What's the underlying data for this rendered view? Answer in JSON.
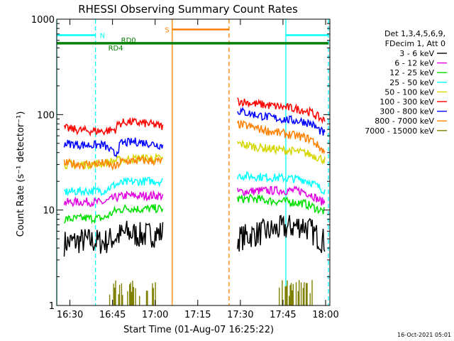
{
  "chart_data": {
    "type": "line",
    "title": "RHESSI Observing Summary Count Rates",
    "xlabel": "Start Time (01-Aug-07 16:25:22)",
    "ylabel": "Count Rate (s⁻¹ detector⁻¹)",
    "yscale": "log",
    "ylim": [
      1,
      1000
    ],
    "xlim": [
      "16:25:22",
      "18:01:30"
    ],
    "x_ticks": [
      "16:30",
      "16:45",
      "17:00",
      "17:15",
      "17:30",
      "17:45",
      "18:00"
    ],
    "y_ticks": [
      "1",
      "10",
      "100",
      "1000"
    ],
    "legend_header": [
      "Det 1,3,4,5,6,9,",
      "FDecim 1, Att 0"
    ],
    "legend_position": "right",
    "timestamp": "16-Oct-2021 05:01",
    "series": [
      {
        "name": "3 - 6 keV",
        "color": "#000000",
        "segments": [
          [
            [
              "16:28",
              4.5
            ],
            [
              "16:35",
              4.8
            ],
            [
              "16:42",
              4.6
            ],
            [
              "16:46",
              5.2
            ],
            [
              "16:50",
              5.8
            ],
            [
              "16:55",
              5.4
            ],
            [
              "17:00",
              5.6
            ],
            [
              "17:03",
              5.8
            ]
          ],
          [
            [
              "17:29",
              5.0
            ],
            [
              "17:35",
              5.6
            ],
            [
              "17:40",
              6.0
            ],
            [
              "17:47",
              6.6
            ],
            [
              "17:52",
              7.0
            ],
            [
              "17:55",
              6.0
            ],
            [
              "17:58",
              5.0
            ],
            [
              "18:00",
              4.6
            ]
          ]
        ]
      },
      {
        "name": "6 - 12 keV",
        "color": "#e000e0",
        "segments": [
          [
            [
              "16:28",
              12.0
            ],
            [
              "16:35",
              12.2
            ],
            [
              "16:42",
              12.0
            ],
            [
              "16:46",
              13.5
            ],
            [
              "16:50",
              14.2
            ],
            [
              "16:55",
              14.0
            ],
            [
              "17:00",
              14.2
            ],
            [
              "17:03",
              14.0
            ]
          ],
          [
            [
              "17:29",
              15.5
            ],
            [
              "17:35",
              15.8
            ],
            [
              "17:40",
              16.0
            ],
            [
              "17:47",
              16.0
            ],
            [
              "17:52",
              15.8
            ],
            [
              "17:55",
              14.5
            ],
            [
              "17:58",
              12.5
            ],
            [
              "18:00",
              12.0
            ]
          ]
        ]
      },
      {
        "name": "12 - 25 keV",
        "color": "#00e000",
        "segments": [
          [
            [
              "16:28",
              8.0
            ],
            [
              "16:35",
              8.2
            ],
            [
              "16:42",
              8.2
            ],
            [
              "16:46",
              9.8
            ],
            [
              "16:50",
              10.5
            ],
            [
              "16:55",
              10.2
            ],
            [
              "17:00",
              10.4
            ],
            [
              "17:03",
              10.2
            ]
          ],
          [
            [
              "17:29",
              13.0
            ],
            [
              "17:35",
              13.2
            ],
            [
              "17:40",
              12.5
            ],
            [
              "17:47",
              12.2
            ],
            [
              "17:52",
              11.8
            ],
            [
              "17:55",
              11.0
            ],
            [
              "17:58",
              10.0
            ],
            [
              "18:00",
              9.5
            ]
          ]
        ]
      },
      {
        "name": "25 - 50 keV",
        "color": "#00ffff",
        "segments": [
          [
            [
              "16:28",
              15.5
            ],
            [
              "16:35",
              15.8
            ],
            [
              "16:42",
              16.0
            ],
            [
              "16:46",
              18.5
            ],
            [
              "16:50",
              19.5
            ],
            [
              "16:55",
              20.0
            ],
            [
              "17:00",
              20.2
            ],
            [
              "17:03",
              19.8
            ]
          ],
          [
            [
              "17:29",
              23.0
            ],
            [
              "17:35",
              22.5
            ],
            [
              "17:40",
              22.0
            ],
            [
              "17:47",
              21.5
            ],
            [
              "17:52",
              21.0
            ],
            [
              "17:55",
              19.5
            ],
            [
              "17:58",
              17.0
            ],
            [
              "18:00",
              16.0
            ]
          ]
        ]
      },
      {
        "name": "50 - 100 keV",
        "color": "#d6d600",
        "segments": [
          [
            [
              "16:28",
              30.0
            ],
            [
              "16:35",
              30.0
            ],
            [
              "16:42",
              31.0
            ],
            [
              "16:46",
              33.0
            ],
            [
              "16:50",
              34.0
            ],
            [
              "16:55",
              35.0
            ],
            [
              "17:00",
              35.0
            ],
            [
              "17:03",
              34.0
            ]
          ],
          [
            [
              "17:29",
              50.0
            ],
            [
              "17:35",
              46.0
            ],
            [
              "17:40",
              44.0
            ],
            [
              "17:47",
              42.0
            ],
            [
              "17:52",
              40.0
            ],
            [
              "17:55",
              38.0
            ],
            [
              "17:58",
              35.0
            ],
            [
              "18:00",
              33.0
            ]
          ]
        ]
      },
      {
        "name": "100 - 300 keV",
        "color": "#ff0000",
        "segments": [
          [
            [
              "16:28",
              72.0
            ],
            [
              "16:35",
              68.0
            ],
            [
              "16:42",
              67.0
            ],
            [
              "16:46",
              70.0
            ],
            [
              "16:47",
              80.0
            ],
            [
              "16:50",
              84.0
            ],
            [
              "16:55",
              82.0
            ],
            [
              "17:00",
              78.0
            ],
            [
              "17:03",
              75.0
            ]
          ],
          [
            [
              "17:29",
              140.0
            ],
            [
              "17:35",
              130.0
            ],
            [
              "17:40",
              125.0
            ],
            [
              "17:47",
              118.0
            ],
            [
              "17:52",
              112.0
            ],
            [
              "17:55",
              105.0
            ],
            [
              "17:58",
              92.0
            ],
            [
              "18:00",
              85.0
            ]
          ]
        ]
      },
      {
        "name": "300 - 800 keV",
        "color": "#0000ff",
        "segments": [
          [
            [
              "16:28",
              50.0
            ],
            [
              "16:35",
              48.0
            ],
            [
              "16:42",
              48.0
            ],
            [
              "16:46",
              38.0
            ],
            [
              "16:48",
              50.0
            ],
            [
              "16:53",
              52.0
            ],
            [
              "16:58",
              50.0
            ],
            [
              "17:03",
              47.0
            ]
          ],
          [
            [
              "17:29",
              110.0
            ],
            [
              "17:35",
              100.0
            ],
            [
              "17:40",
              94.0
            ],
            [
              "17:47",
              88.0
            ],
            [
              "17:52",
              85.0
            ],
            [
              "17:55",
              80.0
            ],
            [
              "17:58",
              68.0
            ],
            [
              "18:00",
              62.0
            ]
          ]
        ]
      },
      {
        "name": "800 - 7000 keV",
        "color": "#ff8000",
        "segments": [
          [
            [
              "16:28",
              31.0
            ],
            [
              "16:35",
              30.0
            ],
            [
              "16:42",
              31.0
            ],
            [
              "16:46",
              28.0
            ],
            [
              "16:48",
              32.0
            ],
            [
              "16:53",
              33.0
            ],
            [
              "16:58",
              33.0
            ],
            [
              "17:03",
              32.0
            ]
          ],
          [
            [
              "17:29",
              80.0
            ],
            [
              "17:35",
              73.0
            ],
            [
              "17:40",
              67.0
            ],
            [
              "17:47",
              62.0
            ],
            [
              "17:52",
              58.0
            ],
            [
              "17:55",
              55.0
            ],
            [
              "17:58",
              45.0
            ],
            [
              "18:00",
              40.0
            ]
          ]
        ]
      },
      {
        "name": "7000 - 15000 keV",
        "color": "#808000",
        "segments": [
          [
            [
              "16:44",
              1.0
            ],
            [
              "16:45",
              1.9
            ],
            [
              "16:47",
              1.9
            ],
            [
              "16:49",
              1.0
            ],
            [
              "16:51",
              1.9
            ],
            [
              "16:53",
              1.9
            ],
            [
              "16:55",
              1.0
            ],
            [
              "16:56",
              1.9
            ],
            [
              "17:00",
              1.9
            ],
            [
              "17:01",
              1.0
            ]
          ],
          [
            [
              "17:43",
              1.0
            ],
            [
              "17:44",
              1.9
            ],
            [
              "17:55",
              1.9
            ],
            [
              "17:56",
              1.0
            ]
          ]
        ]
      }
    ],
    "annotations": [
      {
        "label": "N",
        "type": "bar",
        "color": "#00ffff",
        "y": 680,
        "spans": [
          [
            "16:25:22",
            "16:39"
          ],
          [
            "17:46",
            "18:01"
          ]
        ]
      },
      {
        "label": "RD4",
        "type": "bar",
        "color": "#008000",
        "y": 560,
        "spans": [
          [
            "16:25:22",
            "18:01"
          ]
        ]
      },
      {
        "label": "RD0",
        "type": "label",
        "color": "#008000",
        "y": 600
      },
      {
        "label": "S",
        "type": "bar",
        "color": "#ff8000",
        "y": 780,
        "spans": [
          [
            "17:06",
            "17:26"
          ]
        ]
      }
    ],
    "vertical_lines": [
      {
        "x": "16:25:22",
        "color": "#00ffff",
        "style": "solid"
      },
      {
        "x": "16:39",
        "color": "#00ffff",
        "style": "dashed"
      },
      {
        "x": "17:06",
        "color": "#ff8000",
        "style": "solid"
      },
      {
        "x": "17:26",
        "color": "#ff8000",
        "style": "dashed"
      },
      {
        "x": "17:46",
        "color": "#00ffff",
        "style": "solid"
      },
      {
        "x": "18:01",
        "color": "#00ffff",
        "style": "dashed"
      }
    ]
  }
}
